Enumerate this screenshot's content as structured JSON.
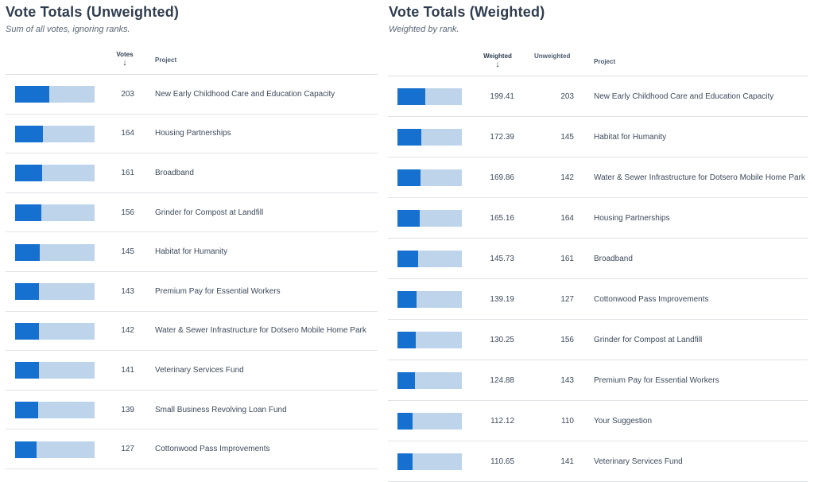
{
  "unweighted": {
    "title": "Vote Totals (Unweighted)",
    "subtitle": "Sum of all votes, ignoring ranks.",
    "columns": {
      "votes": "Votes",
      "project": "Project"
    },
    "sort_icon": "arrow-down-icon",
    "sort_glyph": "↓",
    "bar_colors": {
      "fill": "#1670cf",
      "track": "#bed4ea"
    },
    "rows": [
      {
        "votes": "203",
        "project": "New Early Childhood Care and Education Capacity",
        "bar_fraction": 0.43
      },
      {
        "votes": "164",
        "project": "Housing Partnerships",
        "bar_fraction": 0.35
      },
      {
        "votes": "161",
        "project": "Broadband",
        "bar_fraction": 0.34
      },
      {
        "votes": "156",
        "project": "Grinder for Compost at Landfill",
        "bar_fraction": 0.33
      },
      {
        "votes": "145",
        "project": "Habitat for Humanity",
        "bar_fraction": 0.31
      },
      {
        "votes": "143",
        "project": "Premium Pay for Essential Workers",
        "bar_fraction": 0.3
      },
      {
        "votes": "142",
        "project": "Water & Sewer Infrastructure for Dotsero Mobile Home Park",
        "bar_fraction": 0.3
      },
      {
        "votes": "141",
        "project": "Veterinary Services Fund",
        "bar_fraction": 0.3
      },
      {
        "votes": "139",
        "project": "Small Business Revolving Loan Fund",
        "bar_fraction": 0.29
      },
      {
        "votes": "127",
        "project": "Cottonwood Pass Improvements",
        "bar_fraction": 0.27
      }
    ]
  },
  "weighted": {
    "title": "Vote Totals (Weighted)",
    "subtitle": "Weighted by rank.",
    "columns": {
      "weighted": "Weighted",
      "unweighted": "Unweighted",
      "project": "Project"
    },
    "sort_icon": "arrow-down-icon",
    "sort_glyph": "↓",
    "bar_colors": {
      "fill": "#1670cf",
      "track": "#bed4ea"
    },
    "rows": [
      {
        "weighted": "199.41",
        "unweighted": "203",
        "project": "New Early Childhood Care and Education Capacity",
        "bar_fraction": 0.43
      },
      {
        "weighted": "172.39",
        "unweighted": "145",
        "project": "Habitat for Humanity",
        "bar_fraction": 0.37
      },
      {
        "weighted": "169.86",
        "unweighted": "142",
        "project": "Water & Sewer Infrastructure for Dotsero Mobile Home Park",
        "bar_fraction": 0.36
      },
      {
        "weighted": "165.16",
        "unweighted": "164",
        "project": "Housing Partnerships",
        "bar_fraction": 0.35
      },
      {
        "weighted": "145.73",
        "unweighted": "161",
        "project": "Broadband",
        "bar_fraction": 0.32
      },
      {
        "weighted": "139.19",
        "unweighted": "127",
        "project": "Cottonwood Pass Improvements",
        "bar_fraction": 0.3
      },
      {
        "weighted": "130.25",
        "unweighted": "156",
        "project": "Grinder for Compost at Landfill",
        "bar_fraction": 0.28
      },
      {
        "weighted": "124.88",
        "unweighted": "143",
        "project": "Premium Pay for Essential Workers",
        "bar_fraction": 0.27
      },
      {
        "weighted": "112.12",
        "unweighted": "110",
        "project": "Your Suggestion",
        "bar_fraction": 0.24
      },
      {
        "weighted": "110.65",
        "unweighted": "141",
        "project": "Veterinary Services Fund",
        "bar_fraction": 0.24
      }
    ]
  }
}
